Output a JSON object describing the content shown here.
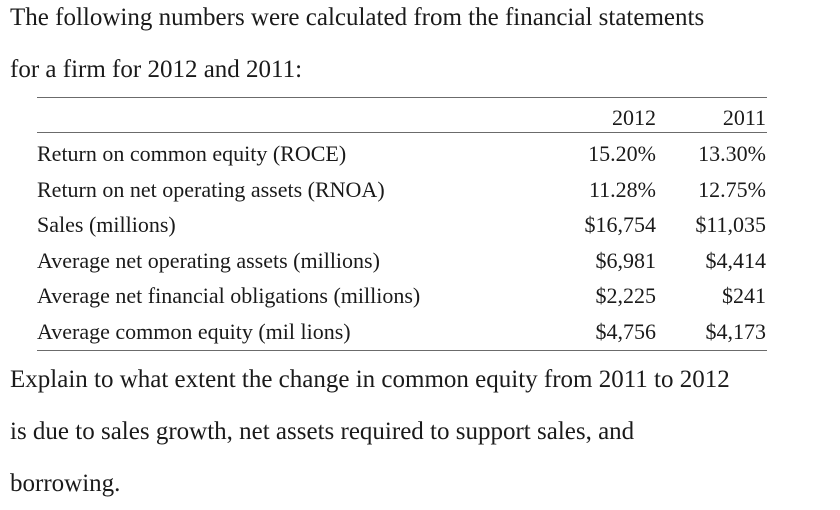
{
  "intro_line_1": "The following numbers were calculated from the financial statements",
  "intro_line_2": "for a firm for 2012 and 2011:",
  "table": {
    "headers": [
      "",
      "2012",
      "2011"
    ],
    "rows": [
      {
        "label": "Return on common equity (ROCE)",
        "v2012": "15.20%",
        "v2011": "13.30%"
      },
      {
        "label": "Return on net operating assets (RNOA)",
        "v2012": "11.28%",
        "v2011": "12.75%"
      },
      {
        "label": "Sales (millions)",
        "v2012": "$16,754",
        "v2011": "$11,035"
      },
      {
        "label": "Average net operating assets (millions)",
        "v2012": "$6,981",
        "v2011": "$4,414"
      },
      {
        "label": "Average net financial obligations (millions)",
        "v2012": "$2,225",
        "v2011": "$241"
      },
      {
        "label": "Average common equity (mil lions)",
        "v2012": "$4,756",
        "v2011": "$4,173"
      }
    ]
  },
  "question_line_1": "Explain to what extent the change in common equity from 2011 to 2012",
  "question_line_2": "is due to sales growth, net assets required to support sales, and",
  "question_line_3": "borrowing."
}
